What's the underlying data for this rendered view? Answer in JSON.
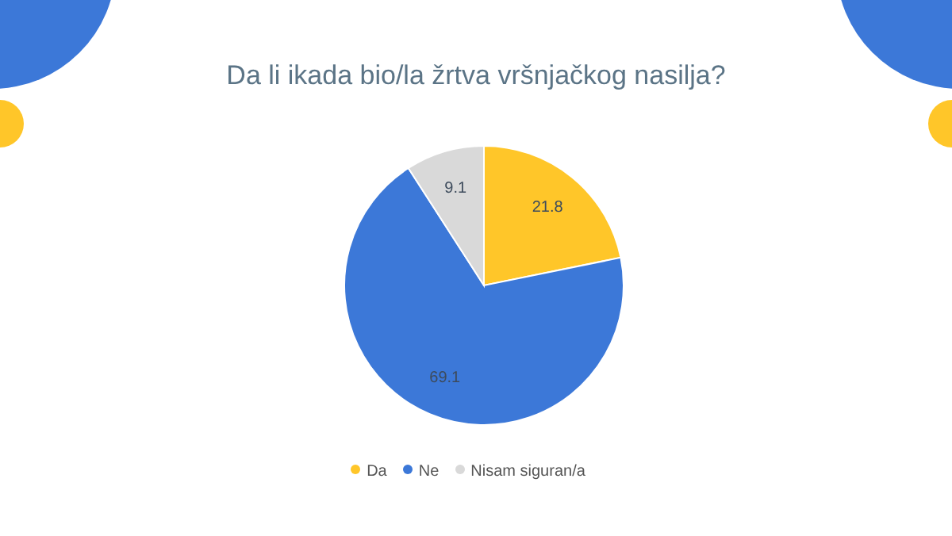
{
  "chart_data": {
    "type": "pie",
    "title": "Da li ikada bio/la žrtva vršnjačkog nasilja?",
    "categories": [
      "Da",
      "Ne",
      "Nisam siguran/a"
    ],
    "values": [
      21.8,
      69.1,
      9.1
    ],
    "colors": [
      "#ffc629",
      "#3c78d8",
      "#d9d9d9"
    ],
    "data_labels": true,
    "legend": "bottom"
  }
}
